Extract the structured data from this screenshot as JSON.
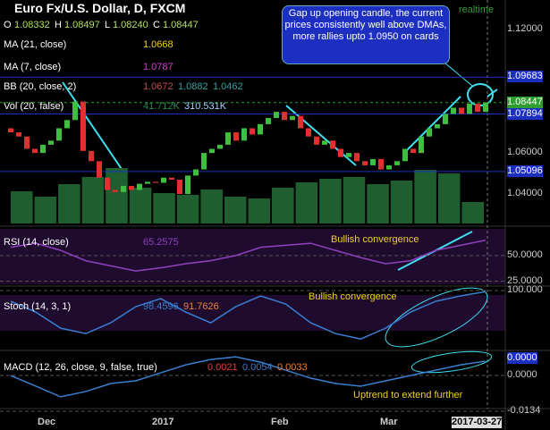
{
  "header": {
    "title": "Euro Fx/U.S. Dollar, D, FXCM",
    "ohlc": [
      {
        "label": "O",
        "value": "1.08332"
      },
      {
        "label": "H",
        "value": "1.08497"
      },
      {
        "label": "L",
        "value": "1.08240"
      },
      {
        "label": "C",
        "value": "1.08447"
      }
    ],
    "status": "realtime"
  },
  "indicators": [
    {
      "label": "MA (21, close)",
      "values": [
        {
          "text": "1.0668",
          "color": "#f0d020"
        }
      ]
    },
    {
      "label": "MA (7, close)",
      "values": [
        {
          "text": "1.0787",
          "color": "#d040d0"
        }
      ]
    },
    {
      "label": "BB (20, close, 2)",
      "values": [
        {
          "text": "1.0672",
          "color": "#c05050"
        },
        {
          "text": "1.0882",
          "color": "#30a0a0"
        },
        {
          "text": "1.0462",
          "color": "#30a0a0"
        }
      ]
    },
    {
      "label": "Vol (20, false)",
      "values": [
        {
          "text": "41.712K",
          "color": "#2e8b57"
        },
        {
          "text": "310.531K",
          "color": "#9fd3ff"
        }
      ]
    },
    {
      "label": "RSI (14, close)",
      "values": [
        {
          "text": "65.2575",
          "color": "#9040c0"
        }
      ]
    },
    {
      "label": "Stoch (14, 3, 1)",
      "values": [
        {
          "text": "98.4596",
          "color": "#3a7fd0"
        },
        {
          "text": "91.7626",
          "color": "#f08030"
        }
      ]
    },
    {
      "label": "MACD (12, 26, close, 9, false, true)",
      "values": [
        {
          "text": "0.0021",
          "color": "#e04040"
        },
        {
          "text": "0.0054",
          "color": "#3a7fd0"
        },
        {
          "text": "0.0033",
          "color": "#f08030"
        }
      ]
    }
  ],
  "annotations": {
    "callout": "Gap up opening candle, the current prices consistently well above DMAs, more rallies upto 1.0950 on cards",
    "rsi_note": "Bullish convergence",
    "stoch_note": "Bullish convergence",
    "macd_note": "Uptrend to extend further"
  },
  "x_labels": [
    "Dec",
    "2017",
    "Feb",
    "Mar",
    "2017-03-27"
  ],
  "chart_data": {
    "type": "candlestick",
    "first_open": 1.072,
    "closes": [
      1.07,
      1.068,
      1.062,
      1.06,
      1.064,
      1.066,
      1.072,
      1.076,
      1.085,
      1.061,
      1.056,
      1.048,
      1.042,
      1.041,
      1.044,
      1.042,
      1.045,
      1.046,
      1.0455,
      1.048,
      1.047,
      1.04,
      1.049,
      1.052,
      1.06,
      1.062,
      1.064,
      1.07,
      1.066,
      1.072,
      1.069,
      1.074,
      1.077,
      1.08,
      1.076,
      1.078,
      1.072,
      1.068,
      1.064,
      1.066,
      1.062,
      1.058,
      1.06,
      1.056,
      1.054,
      1.057,
      1.052,
      1.054,
      1.056,
      1.062,
      1.06,
      1.068,
      1.072,
      1.074,
      1.079,
      1.082,
      1.079,
      1.084,
      1.08,
      1.0845
    ],
    "up_color": "#3fbf3f",
    "down_color": "#e03030",
    "ylim": [
      1.0257,
      1.1309
    ],
    "price_levels": [
      {
        "value": 1.12,
        "label": "1.12000"
      },
      {
        "value": 1.09683,
        "label": "1.09683",
        "color": "#1c2fc0"
      },
      {
        "value": 1.08447,
        "label": "1.08447",
        "color": "#2e9e2e",
        "dashed": true
      },
      {
        "value": 1.07894,
        "label": "1.07894",
        "color": "#1c2fc0"
      },
      {
        "value": 1.06,
        "label": "1.06000"
      },
      {
        "value": 1.05096,
        "label": "1.05096",
        "color": "#1c2fc0"
      },
      {
        "value": 1.04,
        "label": "1.04000"
      }
    ],
    "volume": {
      "values": [
        180,
        150,
        220,
        260,
        310,
        200,
        170,
        160,
        190,
        150,
        140,
        200,
        230,
        250,
        260,
        220,
        240,
        300,
        280,
        120
      ],
      "vlim": [
        0,
        400
      ],
      "color": "#1f5f2f"
    },
    "rsi": {
      "values": [
        58,
        62,
        55,
        45,
        40,
        35,
        38,
        42,
        45,
        50,
        58,
        60,
        62,
        55,
        48,
        42,
        45,
        55,
        60,
        65
      ],
      "ylim": [
        22,
        76
      ],
      "yticks": [
        {
          "value": 50,
          "label": "50.0000"
        },
        {
          "value": 25,
          "label": "25.0000"
        }
      ],
      "color": "#9040c0"
    },
    "stoch": {
      "values": [
        80,
        60,
        30,
        20,
        40,
        70,
        85,
        60,
        40,
        70,
        90,
        75,
        40,
        20,
        10,
        30,
        60,
        80,
        90,
        98
      ],
      "ylim": [
        -8,
        105
      ],
      "yticks": [
        {
          "value": 100,
          "label": "100.000"
        }
      ],
      "color": "#3a7fd0"
    },
    "macd": {
      "values": [
        0,
        -0.004,
        -0.008,
        -0.006,
        -0.003,
        -0.002,
        0.001,
        0.004,
        0.006,
        0.007,
        0.005,
        0.002,
        -0.001,
        -0.003,
        -0.004,
        -0.002,
        0,
        0.002,
        0.004,
        0.0054
      ],
      "ylim": [
        -0.0134,
        0.0084
      ],
      "yticks": [
        {
          "value": 0,
          "label": "0.0000"
        },
        {
          "value": -0.0134,
          "label": "-0.0134"
        }
      ],
      "badge": "0.0000",
      "color": "#3a7fd0"
    }
  }
}
